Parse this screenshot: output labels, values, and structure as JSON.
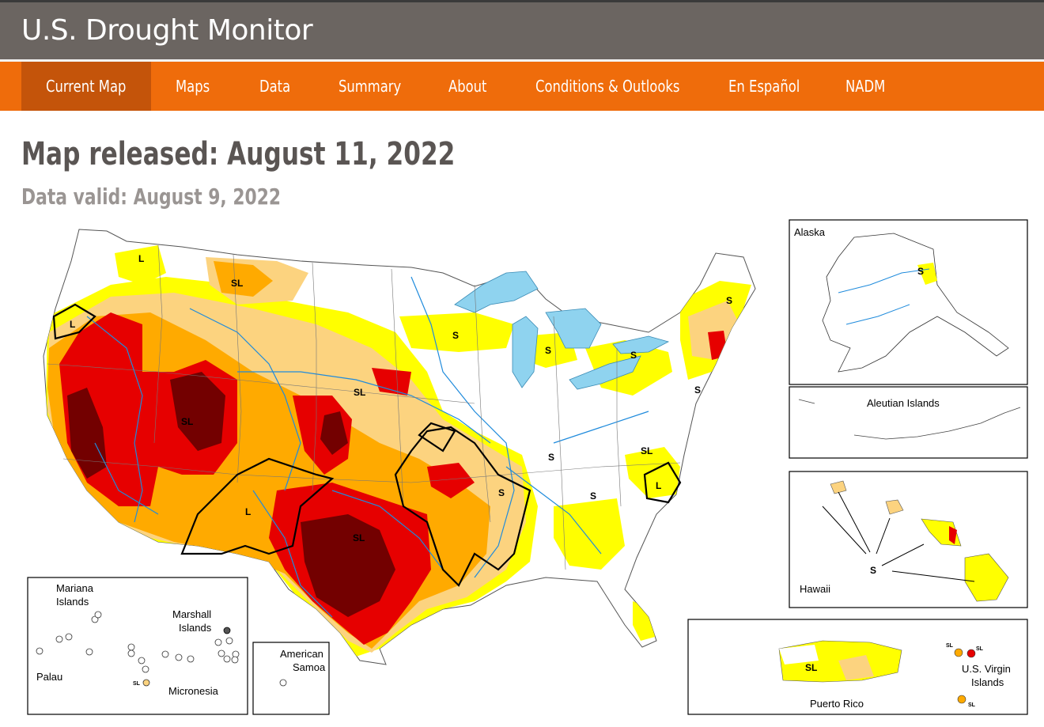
{
  "header": {
    "title": "U.S. Drought Monitor"
  },
  "nav": {
    "items": [
      {
        "label": "Current Map",
        "active": true
      },
      {
        "label": "Maps"
      },
      {
        "label": "Data"
      },
      {
        "label": "Summary"
      },
      {
        "label": "About"
      },
      {
        "label": "Conditions & Outlooks"
      },
      {
        "label": "En Español"
      },
      {
        "label": "NADM"
      }
    ]
  },
  "map": {
    "released": "Map released: August 11, 2022",
    "valid": "Data valid: August 9, 2022",
    "colors": {
      "D0": "#ffff00",
      "D1": "#fcd37f",
      "D2": "#ffaa00",
      "D3": "#e60000",
      "D4": "#730000",
      "water": "#8fd3ef",
      "river": "#1f8bdc"
    },
    "impact_labels": [
      "S",
      "L",
      "SL"
    ],
    "insets": {
      "alaska": "Alaska",
      "aleutian": "Aleutian Islands",
      "hawaii": "Hawaii",
      "puerto_rico": "Puerto Rico",
      "usvi_line1": "U.S. Virgin",
      "usvi_line2": "Islands",
      "american_samoa_line1": "American",
      "american_samoa_line2": "Samoa",
      "mariana_line1": "Mariana",
      "mariana_line2": "Islands",
      "marshall_line1": "Marshall",
      "marshall_line2": "Islands",
      "palau": "Palau",
      "micronesia": "Micronesia"
    }
  }
}
